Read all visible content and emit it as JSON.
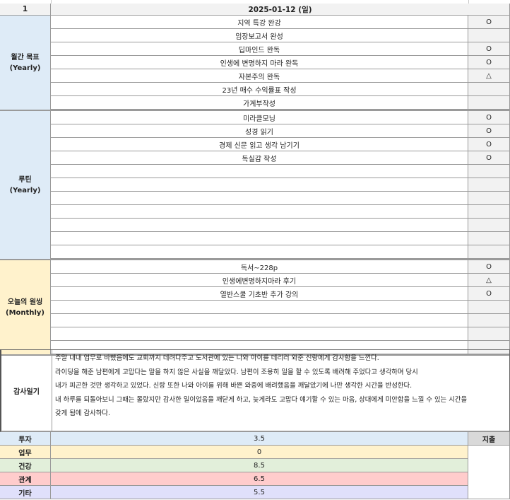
{
  "header": {
    "index": "1",
    "date": "2025-01-12 (일)"
  },
  "sections": [
    {
      "label": "월간 목표\n(Yearly)",
      "color": "#deebf7",
      "items": [
        {
          "text": "지역 특강 완강",
          "mark": "O"
        },
        {
          "text": "임장보고서 완성",
          "mark": ""
        },
        {
          "text": "딥마인드 완독",
          "mark": "O"
        },
        {
          "text": "인생에 변명하지 마라 완독",
          "mark": "O"
        },
        {
          "text": "자본주의 완독",
          "mark": "△"
        },
        {
          "text": "23년 매수 수익률표 작성",
          "mark": ""
        },
        {
          "text": "가계부작성",
          "mark": ""
        }
      ]
    },
    {
      "label": "루틴\n(Yearly)",
      "color": "#deebf7",
      "items": [
        {
          "text": "미라클모닝",
          "mark": "O"
        },
        {
          "text": "성경 읽기",
          "mark": "O"
        },
        {
          "text": "경제 신문 읽고 생각 남기기",
          "mark": "O"
        },
        {
          "text": "독실감 작성",
          "mark": "O"
        },
        {
          "text": "",
          "mark": ""
        },
        {
          "text": "",
          "mark": ""
        },
        {
          "text": "",
          "mark": ""
        },
        {
          "text": "",
          "mark": ""
        },
        {
          "text": "",
          "mark": ""
        },
        {
          "text": "",
          "mark": ""
        },
        {
          "text": "",
          "mark": ""
        }
      ]
    },
    {
      "label": "오늘의 원씽\n(Monthly)",
      "color": "#fff2cc",
      "items": [
        {
          "text": "독서~228p",
          "mark": "O"
        },
        {
          "text": "인생에변명하지마라 후기",
          "mark": "△"
        },
        {
          "text": "열반스쿨 기초반 추가 강의",
          "mark": "O"
        },
        {
          "text": "",
          "mark": ""
        },
        {
          "text": "",
          "mark": ""
        },
        {
          "text": "",
          "mark": ""
        },
        {
          "text": "",
          "mark": ""
        }
      ]
    }
  ],
  "diary": {
    "label": "감사일기",
    "lines": [
      "주말 내내 업무로 바빴음에도 교회까지 데려다주고 도서관에 있는 나와 아이를 데리러 와준 신랑에게 감사함을 느낀다.",
      "라이딩을 해준 남편에게 고맙다는 말을 하지 않은 사실을 깨달았다. 남편이 조용히 일을 할 수 있도록 배려해 주었다고 생각하며 당시",
      "내가 피곤한 것만 생각하고 있었다. 신랑 또한 나와 아이를 위해 바쁜 와중에 배려했음을 깨달았기에 나만 생각한 시간을 반성한다.",
      "내 하루를 되돌아보니 그때는 몰랐지만 감사한 일이었음을 깨닫게 하고, 늦게라도 고맙다 얘기할 수 있는 마음, 상대에게 미안함을 느낄 수 있는 시간을",
      "갖게 됨에 감사하다."
    ]
  },
  "summary": [
    {
      "label": "투자",
      "value": "3.5",
      "color": "#deebf7"
    },
    {
      "label": "업무",
      "value": "0",
      "color": "#fff2cc"
    },
    {
      "label": "건강",
      "value": "8.5",
      "color": "#e2efda"
    },
    {
      "label": "관계",
      "value": "6.5",
      "color": "#ffcccc"
    },
    {
      "label": "기타",
      "value": "5.5",
      "color": "#e0e0fb"
    }
  ],
  "expense": {
    "label": "지출"
  }
}
